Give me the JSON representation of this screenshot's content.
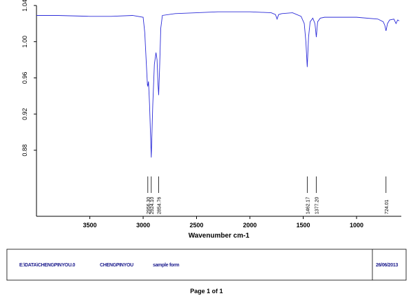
{
  "chart_data": {
    "type": "line",
    "xlabel": "Wavenumber cm-1",
    "x": [
      4000,
      3800,
      3500,
      3300,
      3100,
      3000,
      2985,
      2970,
      2960,
      2956.3,
      2950,
      2940,
      2924.1,
      2910,
      2895,
      2880,
      2870,
      2862,
      2854.76,
      2845,
      2835,
      2820,
      2700,
      2500,
      2300,
      2000,
      1800,
      1760,
      1745,
      1730,
      1700,
      1600,
      1520,
      1490,
      1475,
      1462.17,
      1450,
      1435,
      1410,
      1390,
      1377.2,
      1365,
      1340,
      1300,
      1000,
      800,
      750,
      735,
      724.01,
      710,
      690,
      650,
      630,
      615,
      600
    ],
    "series": [
      {
        "name": "spectrum",
        "color": "#2a2ad8",
        "values": [
          1.029,
          1.029,
          1.028,
          1.028,
          1.029,
          1.027,
          1.01,
          0.975,
          0.952,
          0.951,
          0.956,
          0.93,
          0.872,
          0.93,
          0.975,
          0.988,
          0.98,
          0.955,
          0.941,
          0.975,
          1.015,
          1.029,
          1.031,
          1.032,
          1.033,
          1.033,
          1.032,
          1.03,
          1.025,
          1.03,
          1.031,
          1.032,
          1.028,
          1.02,
          1.0,
          0.972,
          1.005,
          1.022,
          1.026,
          1.02,
          1.005,
          1.022,
          1.026,
          1.027,
          1.027,
          1.025,
          1.022,
          1.018,
          1.012,
          1.02,
          1.024,
          1.025,
          1.02,
          1.024,
          1.023
        ]
      }
    ],
    "xlim": [
      4000,
      600
    ],
    "ylim": [
      0.807,
      1.04
    ],
    "xticks": [
      3500,
      3000,
      2500,
      2000,
      1500,
      1000
    ],
    "yticks": [
      0.88,
      0.92,
      0.96,
      {
        "value": 1,
        "label": "1.00"
      },
      1.04
    ],
    "peaks": [
      {
        "value": 2956.3,
        "label": "2956.30"
      },
      {
        "value": 2924.1,
        "label": "2924.10"
      },
      {
        "value": 2854.76,
        "label": "2854.76"
      },
      {
        "value": 1462.17,
        "label": "1462.17"
      },
      {
        "value": 1377.2,
        "label": "1377.20"
      },
      {
        "value": 724.01,
        "label": "724.01"
      }
    ]
  },
  "footer": {
    "file": "E:\\DATA\\CHENGPINYOU.0",
    "sample": "CHENGPINYOU",
    "note": "sample form",
    "date": "26/06/2013",
    "page": "Page 1 of 1"
  }
}
